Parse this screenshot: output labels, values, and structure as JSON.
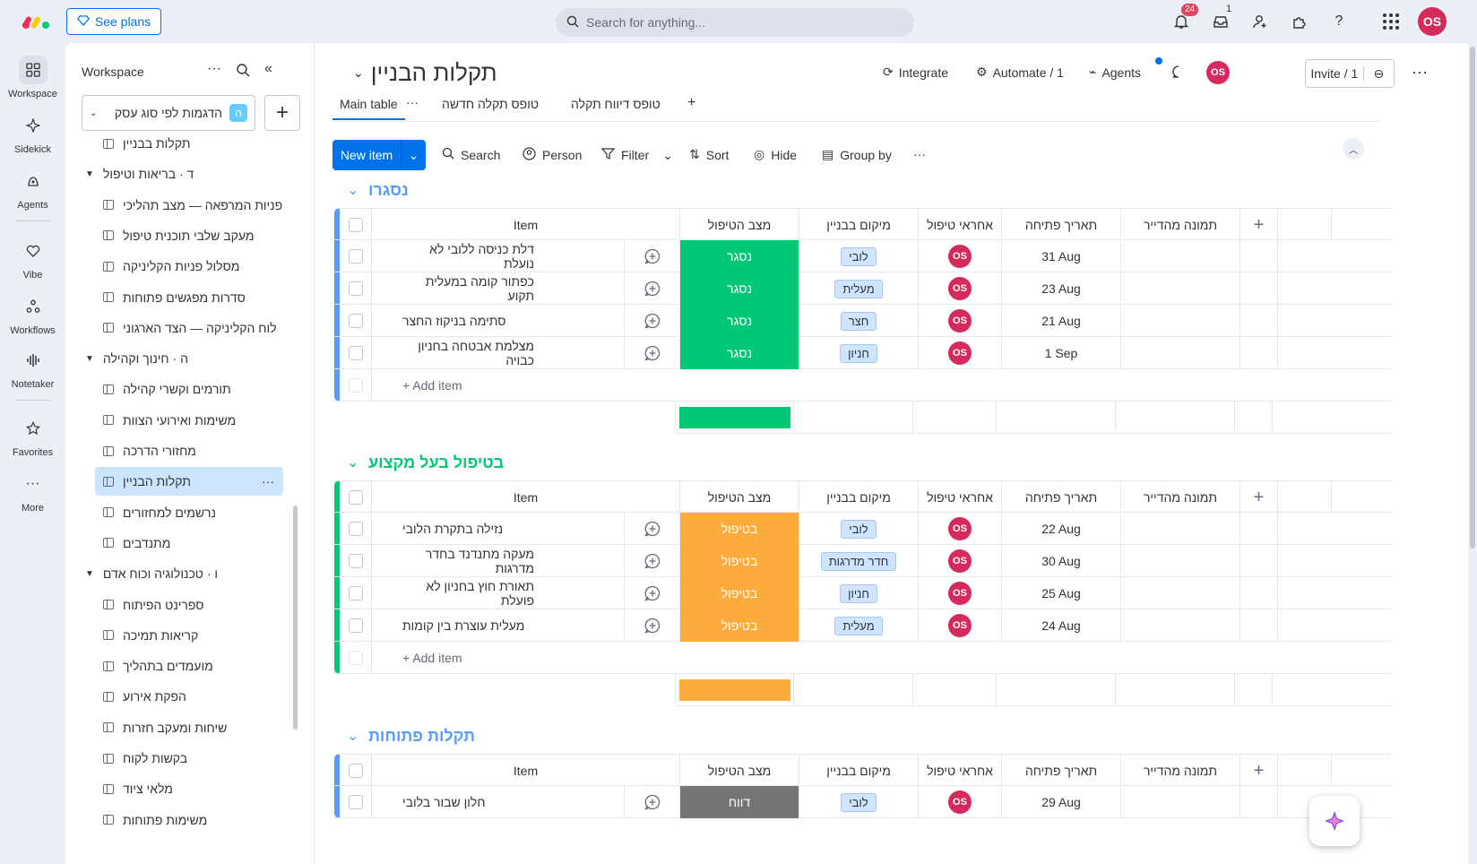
{
  "topbar": {
    "see_plans": "See plans",
    "search_placeholder": "Search for anything...",
    "notifications_count": "24",
    "inbox_count": "1",
    "avatar": "OS"
  },
  "rail": {
    "items": [
      {
        "label": "Workspace",
        "icon": "grid-icon"
      },
      {
        "label": "Sidekick",
        "icon": "sparkle-icon"
      },
      {
        "label": "Agents",
        "icon": "agents-icon"
      },
      {
        "label": "Vibe",
        "icon": "heart-icon"
      },
      {
        "label": "Workflows",
        "icon": "workflows-icon"
      },
      {
        "label": "Notetaker",
        "icon": "waveform-icon"
      },
      {
        "label": "Favorites",
        "icon": "star-icon"
      },
      {
        "label": "More",
        "icon": "dots-icon"
      }
    ]
  },
  "workspace": {
    "title": "Workspace",
    "selector_label": "הדגמות לפי סוג עסק",
    "selector_badge": "ה",
    "tree": [
      {
        "type": "board",
        "label": "תקלות בבניין",
        "partial": true
      },
      {
        "type": "folder",
        "label": "ד · בריאות וטיפול"
      },
      {
        "type": "board",
        "label": "פניות המרפאה — מצב תהליכי"
      },
      {
        "type": "board",
        "label": "מעקב שלבי תוכנית טיפול"
      },
      {
        "type": "board",
        "label": "מסלול פניות הקליניקה"
      },
      {
        "type": "board",
        "label": "סדרות מפגשים פתוחות"
      },
      {
        "type": "board",
        "label": "לוח הקליניקה — הצד הארגוני"
      },
      {
        "type": "folder",
        "label": "ה · חינוך וקהילה"
      },
      {
        "type": "board",
        "label": "תורמים וקשרי קהילה"
      },
      {
        "type": "board",
        "label": "משימות ואירועי הצוות"
      },
      {
        "type": "board",
        "label": "מחזורי הדרכה"
      },
      {
        "type": "board",
        "label": "תקלות הבניין",
        "active": true
      },
      {
        "type": "board",
        "label": "נרשמים למחזורים"
      },
      {
        "type": "board",
        "label": "מתנדבים"
      },
      {
        "type": "folder",
        "label": "ו · טכנולוגיה וכוח אדם"
      },
      {
        "type": "board",
        "label": "ספרינט הפיתוח"
      },
      {
        "type": "board",
        "label": "קריאות תמיכה"
      },
      {
        "type": "board",
        "label": "מועמדים בתהליך"
      },
      {
        "type": "board",
        "label": "הפקת אירוע"
      },
      {
        "type": "board",
        "label": "שיחות ומעקב חזרות"
      },
      {
        "type": "board",
        "label": "בקשות לקוח"
      },
      {
        "type": "board",
        "label": "מלאי ציוד"
      },
      {
        "type": "board",
        "label": "משימות פתוחות",
        "partial": true
      }
    ]
  },
  "board": {
    "title": "תקלות הבניין",
    "integrate": "Integrate",
    "automate": "Automate / 1",
    "agents": "Agents",
    "invite": "Invite / 1",
    "tabs": [
      "Main table",
      "טופס תקלה חדשה",
      "טופס דיווח תקלה"
    ],
    "toolbar": {
      "new_item": "New item",
      "search": "Search",
      "person": "Person",
      "filter": "Filter",
      "sort": "Sort",
      "hide": "Hide",
      "group_by": "Group by"
    },
    "columns": {
      "item": "Item",
      "status": "מצב הטיפול",
      "location": "מיקום בבניין",
      "owner": "אחראי טיפול",
      "date": "תאריך פתיחה",
      "photo": "תמונה מהדייר"
    },
    "add_item": "+ Add item",
    "groups": [
      {
        "title": "נסגרו",
        "color": "#579bfc",
        "status_color": "#00c875",
        "rows": [
          {
            "item": "דלת כניסה ללובי לא נועלת",
            "status": "נסגר",
            "location": "לובי",
            "owner": "OS",
            "date": "31 Aug"
          },
          {
            "item": "כפתור קומה במעלית תקוע",
            "status": "נסגר",
            "location": "מעלית",
            "owner": "OS",
            "date": "23 Aug"
          },
          {
            "item": "סתימה בניקוז החצר",
            "status": "נסגר",
            "location": "חצר",
            "owner": "OS",
            "date": "21 Aug"
          },
          {
            "item": "מצלמת אבטחה בחניון כבויה",
            "status": "נסגר",
            "location": "חניון",
            "owner": "OS",
            "date": "1 Sep"
          }
        ]
      },
      {
        "title": "בטיפול בעל מקצוע",
        "color": "#00c875",
        "status_color": "#fdab3d",
        "rows": [
          {
            "item": "נזילה בתקרת הלובי",
            "status": "בטיפול",
            "location": "לובי",
            "owner": "OS",
            "date": "22 Aug"
          },
          {
            "item": "מעקה מתנדנד בחדר מדרגות",
            "status": "בטיפול",
            "location": "חדר מדרגות",
            "owner": "OS",
            "date": "30 Aug"
          },
          {
            "item": "תאורת חוץ בחניון לא פועלת",
            "status": "בטיפול",
            "location": "חניון",
            "owner": "OS",
            "date": "25 Aug"
          },
          {
            "item": "מעלית עוצרת בין קומות",
            "status": "בטיפול",
            "location": "מעלית",
            "owner": "OS",
            "date": "24 Aug"
          }
        ]
      },
      {
        "title": "תקלות פתוחות",
        "color": "#579bfc",
        "status_color": "#757575",
        "rows": [
          {
            "item": "חלון שבור בלובי",
            "status": "דווח",
            "location": "לובי",
            "owner": "OS",
            "date": "29 Aug"
          }
        ]
      }
    ]
  }
}
